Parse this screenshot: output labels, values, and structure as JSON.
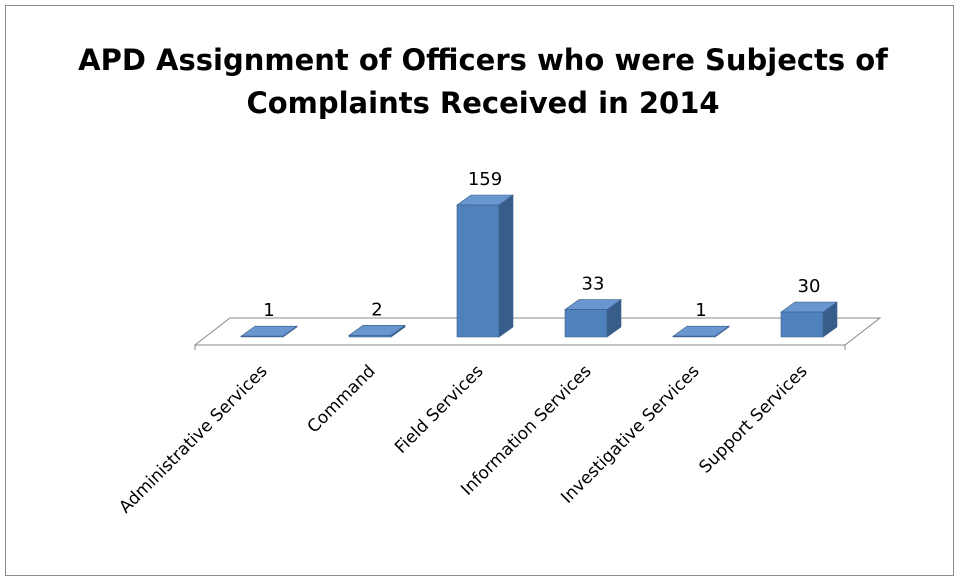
{
  "chart_data": {
    "type": "bar3d",
    "title": [
      "APD Assignment of Officers who were Subjects of",
      "Complaints Received in 2014"
    ],
    "categories": [
      "Administrative Services",
      "Command",
      "Field Services",
      "Information Services",
      "Investigative Services",
      "Support Services"
    ],
    "values": [
      1,
      2,
      159,
      33,
      1,
      30
    ],
    "color": "#4f81bd"
  }
}
